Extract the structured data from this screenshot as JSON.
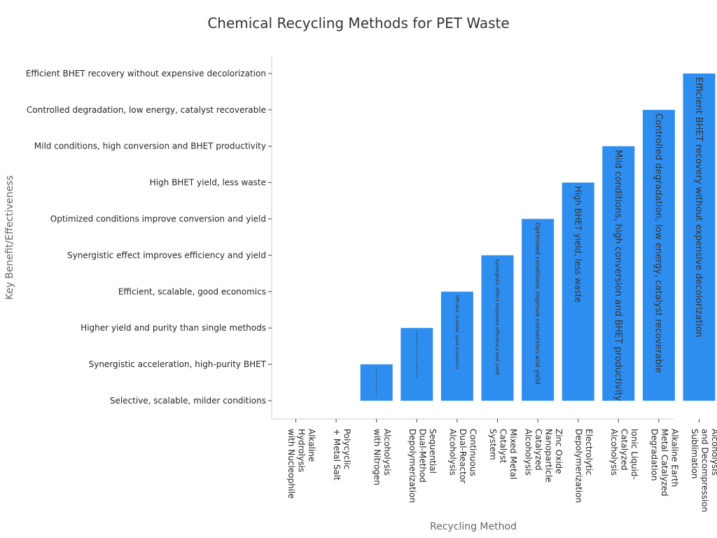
{
  "chart_data": {
    "type": "bar",
    "title": "Chemical Recycling Methods for PET Waste",
    "xlabel": "Recycling Method",
    "ylabel": "Key Benefit/Effectiveness",
    "bar_color": "#2e8ef0",
    "y_categories": [
      "Selective, scalable, milder conditions",
      "Synergistic acceleration, high-purity BHET",
      "Higher yield and purity than single methods",
      "Efficient, scalable, good economics",
      "Synergistic effect improves efficiency and yield",
      "Optimized conditions improve conversion and yield",
      "High BHET yield, less waste",
      "Mild conditions, high conversion and BHET productivity",
      "Controlled degradation, low energy, catalyst recoverable",
      "Efficient BHET recovery without expensive decolorization"
    ],
    "categories": [
      "Alkaline Hydrolysis with Nucleophile",
      "Polycyclic + Metal Salt",
      "Alcoholysis with Nitrogen",
      "Sequential Dual-Method Depolymerization",
      "Continuous Dual-Reactor Alcoholysis",
      "Mixed Metal Catalyst System",
      "Zinc Oxide Nanoparticle Catalyzed Alcoholysis",
      "Electrolytic Depolymerization",
      "Ionic Liquid-Catalyzed Alcoholysis",
      "Alkaline Earth Metal Catalyzed Degradation",
      "Alcoholysis and Decompression Sublimation"
    ],
    "x_tick_lines": [
      [
        "Alkaline",
        "Hydrolysis",
        "with Nucleophile"
      ],
      [
        "Polycyclic",
        "+ Metal Salt"
      ],
      [
        "Alcoholysis",
        "with Nitrogen"
      ],
      [
        "Sequential",
        "Dual-Method",
        "Depolymerization"
      ],
      [
        "Continuous",
        "Dual-Reactor",
        "Alcoholysis"
      ],
      [
        "Mixed Metal",
        "Catalyst",
        "System"
      ],
      [
        "Zinc Oxide",
        "Nanoparticle",
        "Catalyzed",
        "Alcoholysis"
      ],
      [
        "Electrolytic",
        "Depolymerization"
      ],
      [
        "Ionic Liquid-",
        "Catalyzed",
        "Alcoholysis"
      ],
      [
        "Alkaline Earth",
        "Metal Catalyzed",
        "Degradation"
      ],
      [
        "Alcoholysis",
        "and Decompression",
        "Sublimation"
      ]
    ],
    "values": [
      "Selective, scalable, milder conditions",
      "Selective, scalable, milder conditions",
      "Synergistic acceleration, high-purity BHET",
      "Higher yield and purity than single methods",
      "Efficient, scalable, good economics",
      "Synergistic effect improves efficiency and yield",
      "Optimized conditions improve conversion and yield",
      "High BHET yield, less waste",
      "Mild conditions, high conversion and BHET productivity",
      "Controlled degradation, low energy, catalyst recoverable",
      "Efficient BHET recovery without expensive decolorization"
    ],
    "value_index": [
      0,
      0,
      1,
      2,
      3,
      4,
      5,
      6,
      7,
      8,
      9
    ],
    "bar_labels": [
      "",
      "",
      "Synergistic acceleration, high-purity BHET",
      "Higher yield and purity than single methods",
      "Efficient, scalable, good economics",
      "Synergistic effect improves efficiency and yield",
      "Optimized conditions improve conversion and yield",
      "High BHET yield, less waste",
      "Mild conditions, high conversion and BHET productivity",
      "Controlled degradation, low energy, catalyst recoverable",
      "Efficient BHET recovery without expensive decolorization"
    ],
    "bar_label_sizes": [
      0,
      0,
      2,
      3,
      6,
      7,
      9,
      12,
      13,
      13,
      13
    ],
    "grid": false,
    "legend": "none"
  }
}
